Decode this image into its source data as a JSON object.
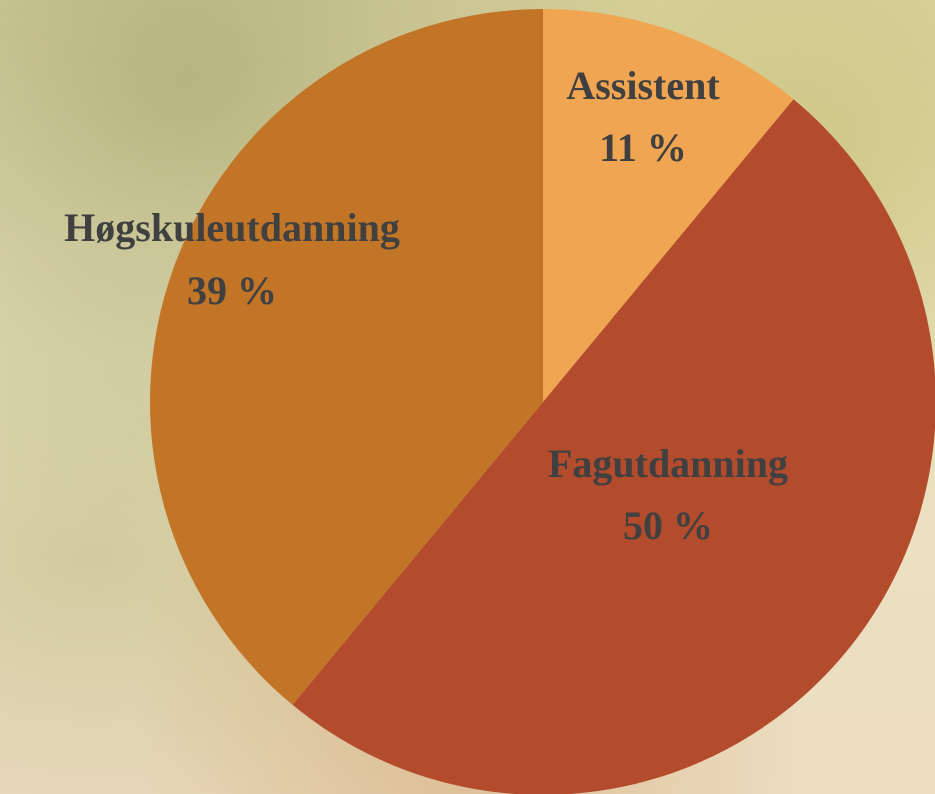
{
  "chart_data": {
    "type": "pie",
    "categories": [
      "Assistent",
      "Fagutdanning",
      "Høgskuleutdanning"
    ],
    "values": [
      11,
      50,
      39
    ],
    "value_labels": [
      "11 %",
      "50 %",
      "39 %"
    ],
    "colors": [
      "#f0a552",
      "#b34b2d",
      "#c27527"
    ]
  }
}
